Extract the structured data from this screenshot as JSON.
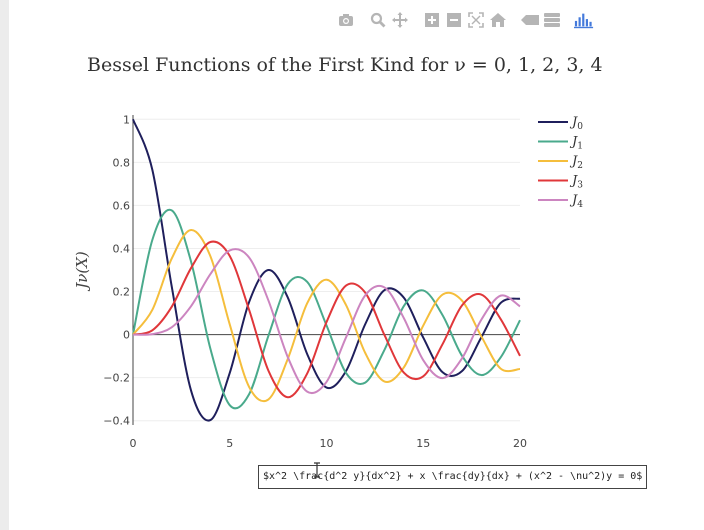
{
  "modebar": {
    "icons": [
      "camera-icon",
      "zoom-icon",
      "pan-icon",
      "zoom-in-icon",
      "zoom-out-icon",
      "autoscale-icon",
      "reset-axes-icon",
      "toggle-spike-lines-icon",
      "hover-compare-icon",
      "plotly-logo-icon"
    ]
  },
  "colors": {
    "J0": "#1f1f5c",
    "J1": "#4aaa8c",
    "J2": "#f5be3c",
    "J3": "#e0373a",
    "J4": "#cc85c0",
    "modebar": "#b5b5b5",
    "plotly": "#447adb"
  },
  "equation_text": "$x^2 \\frac{d^2 y}{dx^2} + x \\frac{dy}{dx} + (x^2 - \\nu^2)y = 0$",
  "chart_data": {
    "type": "line",
    "title": "Bessel Functions of the First Kind for ν = 0, 1, 2, 3, 4",
    "xlabel": "",
    "ylabel": "Jν(X)",
    "xlim": [
      0,
      20
    ],
    "ylim": [
      -0.42,
      1.02
    ],
    "x_ticks": [
      "0",
      "5",
      "10",
      "15",
      "20"
    ],
    "y_ticks": [
      "−0.4",
      "−0.2",
      "0",
      "0.2",
      "0.4",
      "0.6",
      "0.8",
      "1"
    ],
    "grid": true,
    "legend_position": "top-right",
    "x": [
      0,
      1,
      2,
      3,
      4,
      5,
      6,
      7,
      8,
      9,
      10,
      11,
      12,
      13,
      14,
      15,
      16,
      17,
      18,
      19,
      20
    ],
    "series": [
      {
        "name": "J0",
        "color": "#1f1f5c",
        "values": [
          1.0,
          0.765,
          0.224,
          -0.26,
          -0.397,
          -0.178,
          0.151,
          0.3,
          0.172,
          -0.09,
          -0.246,
          -0.171,
          0.048,
          0.207,
          0.171,
          -0.014,
          -0.175,
          -0.17,
          -0.013,
          0.147,
          0.167
        ]
      },
      {
        "name": "J1",
        "color": "#4aaa8c",
        "values": [
          0.0,
          0.44,
          0.577,
          0.339,
          -0.066,
          -0.328,
          -0.277,
          -0.005,
          0.235,
          0.245,
          0.043,
          -0.177,
          -0.223,
          -0.07,
          0.133,
          0.205,
          0.09,
          -0.098,
          -0.188,
          -0.106,
          0.067
        ]
      },
      {
        "name": "J2",
        "color": "#f5be3c",
        "values": [
          0.0,
          0.115,
          0.353,
          0.486,
          0.364,
          0.047,
          -0.243,
          -0.301,
          -0.113,
          0.145,
          0.255,
          0.139,
          -0.085,
          -0.218,
          -0.152,
          0.042,
          0.186,
          0.158,
          -0.008,
          -0.158,
          -0.16
        ]
      },
      {
        "name": "J3",
        "color": "#e0373a",
        "values": [
          0.0,
          0.02,
          0.129,
          0.309,
          0.43,
          0.365,
          0.115,
          -0.168,
          -0.291,
          -0.181,
          0.058,
          0.227,
          0.195,
          -0.003,
          -0.177,
          -0.194,
          -0.044,
          0.135,
          0.186,
          0.072,
          -0.099
        ]
      },
      {
        "name": "J4",
        "color": "#cc85c0",
        "values": [
          0.0,
          0.002,
          0.034,
          0.132,
          0.281,
          0.391,
          0.358,
          0.158,
          -0.105,
          -0.265,
          -0.22,
          -0.015,
          0.182,
          0.219,
          0.076,
          -0.119,
          -0.202,
          -0.111,
          0.069,
          0.181,
          0.131
        ]
      }
    ]
  }
}
